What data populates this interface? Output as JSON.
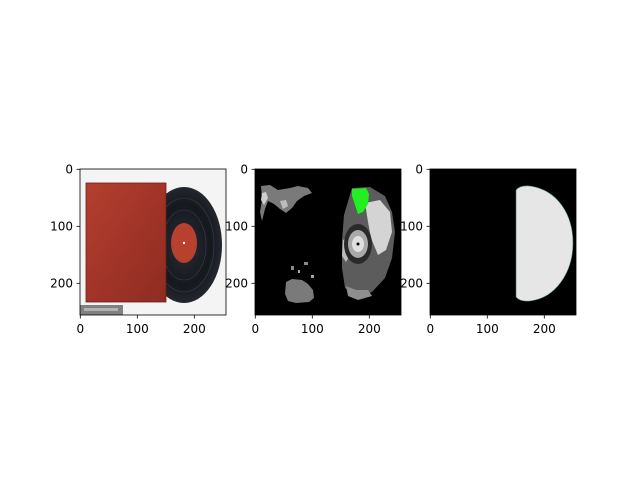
{
  "figure": {
    "background": "#ffffff"
  },
  "chart_data": [
    {
      "type": "image",
      "panel": "photo",
      "content": "record sleeve with vinyl record",
      "xlim": [
        0,
        256
      ],
      "ylim": [
        256,
        0
      ],
      "xticks": [
        0,
        100,
        200
      ],
      "yticks": [
        0,
        100,
        200
      ],
      "colors": {
        "sleeve": "#a8372c",
        "record": "#15181d",
        "label": "#b8402e"
      }
    },
    {
      "type": "image",
      "panel": "segmentation",
      "content": "segmentation map",
      "xlim": [
        0,
        256
      ],
      "ylim": [
        256,
        0
      ],
      "xticks": [
        0,
        100,
        200
      ],
      "yticks": [
        0,
        100,
        200
      ],
      "colors": {
        "background": "#000000",
        "gray": "#7a7a7a",
        "light": "#d4d4d4",
        "highlight": "#22ee22"
      }
    },
    {
      "type": "image",
      "panel": "mask",
      "content": "half-disc mask",
      "xlim": [
        0,
        256
      ],
      "ylim": [
        256,
        0
      ],
      "xticks": [
        0,
        100,
        200
      ],
      "yticks": [
        0,
        100,
        200
      ],
      "colors": {
        "background": "#000000",
        "foreground": "#e6e6e6"
      }
    }
  ]
}
